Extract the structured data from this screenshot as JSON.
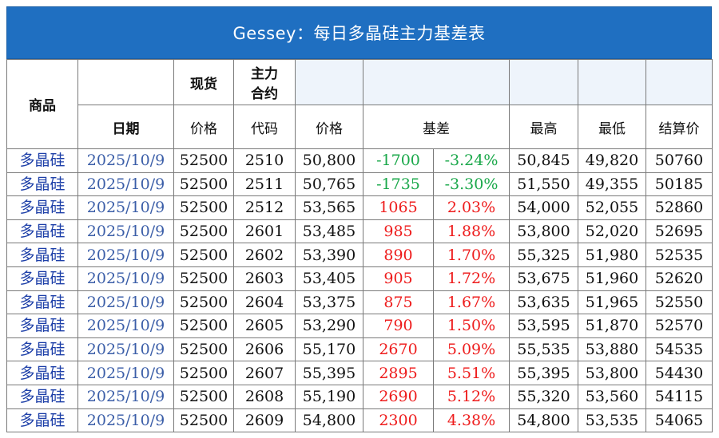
{
  "title": "Gessey：每日多晶硅主力基差表",
  "header": {
    "product": "商品",
    "spot_top": "现货",
    "main_top_line1": "主力",
    "main_top_line2": "合约",
    "date": "日期",
    "spot_price": "价格",
    "code": "代码",
    "price": "价格",
    "basis": "基差",
    "high": "最高",
    "low": "最低",
    "settle": "结算价"
  },
  "rows": [
    {
      "product": "多晶硅",
      "date": "2025/10/9",
      "spot": "52500",
      "code": "2510",
      "price": "50,800",
      "basis": "-1700",
      "pct": "-3.24%",
      "high": "50,845",
      "low": "49,820",
      "settle": "50760",
      "sign": "neg"
    },
    {
      "product": "多晶硅",
      "date": "2025/10/9",
      "spot": "52500",
      "code": "2511",
      "price": "50,765",
      "basis": "-1735",
      "pct": "-3.30%",
      "high": "51,550",
      "low": "49,355",
      "settle": "50185",
      "sign": "neg"
    },
    {
      "product": "多晶硅",
      "date": "2025/10/9",
      "spot": "52500",
      "code": "2512",
      "price": "53,565",
      "basis": "1065",
      "pct": "2.03%",
      "high": "54,000",
      "low": "52,055",
      "settle": "52860",
      "sign": "pos"
    },
    {
      "product": "多晶硅",
      "date": "2025/10/9",
      "spot": "52500",
      "code": "2601",
      "price": "53,485",
      "basis": "985",
      "pct": "1.88%",
      "high": "53,800",
      "low": "52,020",
      "settle": "52695",
      "sign": "pos"
    },
    {
      "product": "多晶硅",
      "date": "2025/10/9",
      "spot": "52500",
      "code": "2602",
      "price": "53,390",
      "basis": "890",
      "pct": "1.70%",
      "high": "55,325",
      "low": "51,980",
      "settle": "52535",
      "sign": "pos"
    },
    {
      "product": "多晶硅",
      "date": "2025/10/9",
      "spot": "52500",
      "code": "2603",
      "price": "53,405",
      "basis": "905",
      "pct": "1.72%",
      "high": "53,675",
      "low": "51,960",
      "settle": "52620",
      "sign": "pos"
    },
    {
      "product": "多晶硅",
      "date": "2025/10/9",
      "spot": "52500",
      "code": "2604",
      "price": "53,375",
      "basis": "875",
      "pct": "1.67%",
      "high": "53,635",
      "low": "51,965",
      "settle": "52550",
      "sign": "pos"
    },
    {
      "product": "多晶硅",
      "date": "2025/10/9",
      "spot": "52500",
      "code": "2605",
      "price": "53,290",
      "basis": "790",
      "pct": "1.50%",
      "high": "53,595",
      "low": "51,870",
      "settle": "52570",
      "sign": "pos"
    },
    {
      "product": "多晶硅",
      "date": "2025/10/9",
      "spot": "52500",
      "code": "2606",
      "price": "55,170",
      "basis": "2670",
      "pct": "5.09%",
      "high": "55,535",
      "low": "53,880",
      "settle": "54535",
      "sign": "pos"
    },
    {
      "product": "多晶硅",
      "date": "2025/10/9",
      "spot": "52500",
      "code": "2607",
      "price": "55,395",
      "basis": "2895",
      "pct": "5.51%",
      "high": "55,395",
      "low": "53,800",
      "settle": "54430",
      "sign": "pos"
    },
    {
      "product": "多晶硅",
      "date": "2025/10/9",
      "spot": "52500",
      "code": "2608",
      "price": "55,190",
      "basis": "2690",
      "pct": "5.12%",
      "high": "55,320",
      "low": "53,560",
      "settle": "54115",
      "sign": "pos"
    },
    {
      "product": "多晶硅",
      "date": "2025/10/9",
      "spot": "52500",
      "code": "2609",
      "price": "54,800",
      "basis": "2300",
      "pct": "4.38%",
      "high": "54,800",
      "low": "53,535",
      "settle": "54065",
      "sign": "pos"
    }
  ],
  "colors": {
    "title_bg": "#1f6fc1",
    "positive": "#ee1c1c",
    "negative": "#1aa84a",
    "product_text": "#1d3fa8",
    "date_text": "#3b5ea8"
  }
}
